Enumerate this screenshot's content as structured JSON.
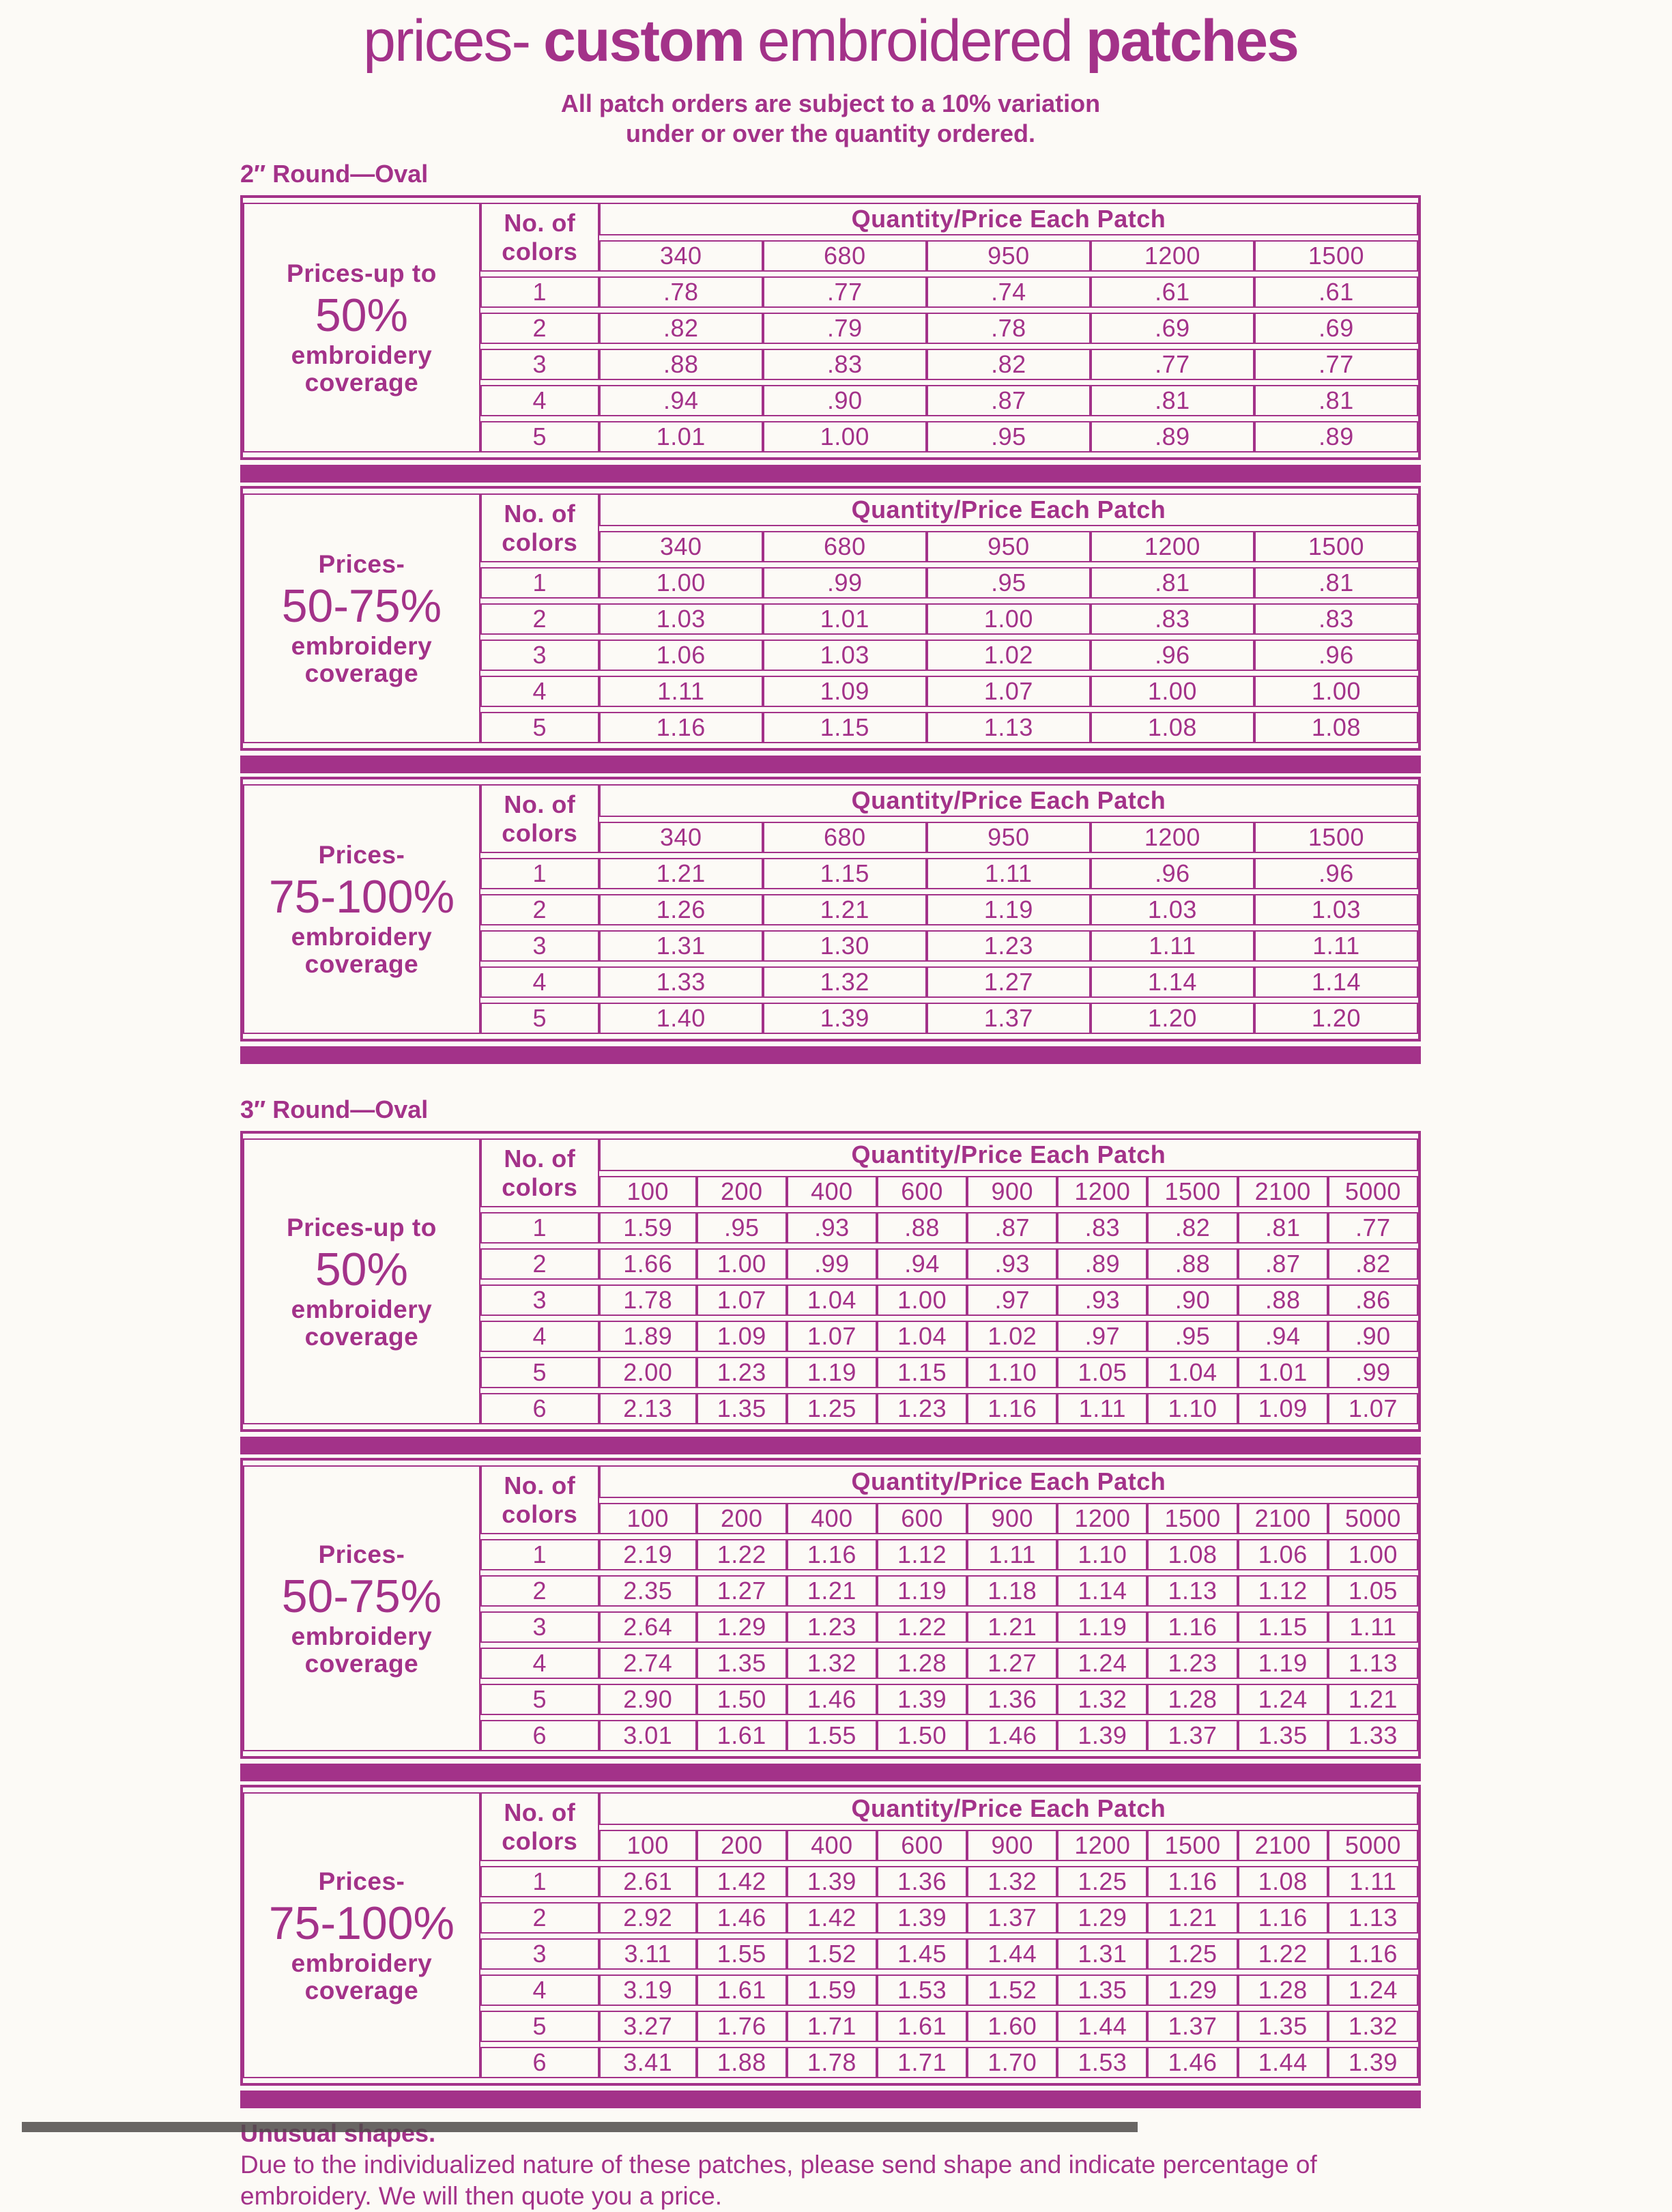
{
  "accent": "#a33289",
  "page_bg": "#fcfaf6",
  "title": {
    "t1": "prices-",
    "t2": "custom",
    "t3": "embroidered",
    "t4": "patches"
  },
  "notice_line1": "All patch orders are subject to a 10% variation",
  "notice_line2": "under or over the quantity ordered.",
  "table_header": {
    "colors_l1": "No. of",
    "colors_l2": "colors",
    "quantity": "Quantity/Price Each Patch"
  },
  "sections": [
    {
      "label": "2″ Round—Oval",
      "quantities": [
        "340",
        "680",
        "950",
        "1200",
        "1500"
      ],
      "tables": [
        {
          "coverage_top": "Prices-up to",
          "coverage_big": "50%",
          "coverage_lines": [
            "embroidery",
            "coverage"
          ],
          "rows": [
            [
              "1",
              ".78",
              ".77",
              ".74",
              ".61",
              ".61"
            ],
            [
              "2",
              ".82",
              ".79",
              ".78",
              ".69",
              ".69"
            ],
            [
              "3",
              ".88",
              ".83",
              ".82",
              ".77",
              ".77"
            ],
            [
              "4",
              ".94",
              ".90",
              ".87",
              ".81",
              ".81"
            ],
            [
              "5",
              "1.01",
              "1.00",
              ".95",
              ".89",
              ".89"
            ]
          ]
        },
        {
          "coverage_top": "Prices-",
          "coverage_big": "50-75%",
          "coverage_lines": [
            "embroidery",
            "coverage"
          ],
          "rows": [
            [
              "1",
              "1.00",
              ".99",
              ".95",
              ".81",
              ".81"
            ],
            [
              "2",
              "1.03",
              "1.01",
              "1.00",
              ".83",
              ".83"
            ],
            [
              "3",
              "1.06",
              "1.03",
              "1.02",
              ".96",
              ".96"
            ],
            [
              "4",
              "1.11",
              "1.09",
              "1.07",
              "1.00",
              "1.00"
            ],
            [
              "5",
              "1.16",
              "1.15",
              "1.13",
              "1.08",
              "1.08"
            ]
          ]
        },
        {
          "coverage_top": "Prices-",
          "coverage_big": "75-100%",
          "coverage_lines": [
            "embroidery",
            "coverage"
          ],
          "rows": [
            [
              "1",
              "1.21",
              "1.15",
              "1.11",
              ".96",
              ".96"
            ],
            [
              "2",
              "1.26",
              "1.21",
              "1.19",
              "1.03",
              "1.03"
            ],
            [
              "3",
              "1.31",
              "1.30",
              "1.23",
              "1.11",
              "1.11"
            ],
            [
              "4",
              "1.33",
              "1.32",
              "1.27",
              "1.14",
              "1.14"
            ],
            [
              "5",
              "1.40",
              "1.39",
              "1.37",
              "1.20",
              "1.20"
            ]
          ]
        }
      ]
    },
    {
      "label": "3″ Round—Oval",
      "quantities": [
        "100",
        "200",
        "400",
        "600",
        "900",
        "1200",
        "1500",
        "2100",
        "5000"
      ],
      "tables": [
        {
          "coverage_top": "Prices-up to",
          "coverage_big": "50%",
          "coverage_lines": [
            "embroidery",
            "coverage"
          ],
          "rows": [
            [
              "1",
              "1.59",
              ".95",
              ".93",
              ".88",
              ".87",
              ".83",
              ".82",
              ".81",
              ".77"
            ],
            [
              "2",
              "1.66",
              "1.00",
              ".99",
              ".94",
              ".93",
              ".89",
              ".88",
              ".87",
              ".82"
            ],
            [
              "3",
              "1.78",
              "1.07",
              "1.04",
              "1.00",
              ".97",
              ".93",
              ".90",
              ".88",
              ".86"
            ],
            [
              "4",
              "1.89",
              "1.09",
              "1.07",
              "1.04",
              "1.02",
              ".97",
              ".95",
              ".94",
              ".90"
            ],
            [
              "5",
              "2.00",
              "1.23",
              "1.19",
              "1.15",
              "1.10",
              "1.05",
              "1.04",
              "1.01",
              ".99"
            ],
            [
              "6",
              "2.13",
              "1.35",
              "1.25",
              "1.23",
              "1.16",
              "1.11",
              "1.10",
              "1.09",
              "1.07"
            ]
          ]
        },
        {
          "coverage_top": "Prices-",
          "coverage_big": "50-75%",
          "coverage_lines": [
            "embroidery",
            "coverage"
          ],
          "rows": [
            [
              "1",
              "2.19",
              "1.22",
              "1.16",
              "1.12",
              "1.11",
              "1.10",
              "1.08",
              "1.06",
              "1.00"
            ],
            [
              "2",
              "2.35",
              "1.27",
              "1.21",
              "1.19",
              "1.18",
              "1.14",
              "1.13",
              "1.12",
              "1.05"
            ],
            [
              "3",
              "2.64",
              "1.29",
              "1.23",
              "1.22",
              "1.21",
              "1.19",
              "1.16",
              "1.15",
              "1.11"
            ],
            [
              "4",
              "2.74",
              "1.35",
              "1.32",
              "1.28",
              "1.27",
              "1.24",
              "1.23",
              "1.19",
              "1.13"
            ],
            [
              "5",
              "2.90",
              "1.50",
              "1.46",
              "1.39",
              "1.36",
              "1.32",
              "1.28",
              "1.24",
              "1.21"
            ],
            [
              "6",
              "3.01",
              "1.61",
              "1.55",
              "1.50",
              "1.46",
              "1.39",
              "1.37",
              "1.35",
              "1.33"
            ]
          ]
        },
        {
          "coverage_top": "Prices-",
          "coverage_big": "75-100%",
          "coverage_lines": [
            "embroidery",
            "coverage"
          ],
          "rows": [
            [
              "1",
              "2.61",
              "1.42",
              "1.39",
              "1.36",
              "1.32",
              "1.25",
              "1.16",
              "1.08",
              "1.11"
            ],
            [
              "2",
              "2.92",
              "1.46",
              "1.42",
              "1.39",
              "1.37",
              "1.29",
              "1.21",
              "1.16",
              "1.13"
            ],
            [
              "3",
              "3.11",
              "1.55",
              "1.52",
              "1.45",
              "1.44",
              "1.31",
              "1.25",
              "1.22",
              "1.16"
            ],
            [
              "4",
              "3.19",
              "1.61",
              "1.59",
              "1.53",
              "1.52",
              "1.35",
              "1.29",
              "1.28",
              "1.24"
            ],
            [
              "5",
              "3.27",
              "1.76",
              "1.71",
              "1.61",
              "1.60",
              "1.44",
              "1.37",
              "1.35",
              "1.32"
            ],
            [
              "6",
              "3.41",
              "1.88",
              "1.78",
              "1.71",
              "1.70",
              "1.53",
              "1.46",
              "1.44",
              "1.39"
            ]
          ]
        }
      ]
    }
  ],
  "footer": {
    "heading": "Unusual shapes.",
    "body": "Due to the individualized nature of these patches, please send shape and indicate percentage of embroidery. We will then quote you a price."
  }
}
